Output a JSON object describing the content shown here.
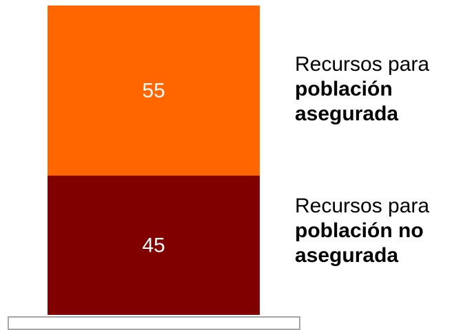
{
  "chart_data": {
    "type": "bar",
    "stacked": true,
    "categories": [
      ""
    ],
    "series": [
      {
        "name_lines": [
          "Recursos para",
          "población no",
          "asegurada"
        ],
        "value": 45,
        "color": "#800000"
      },
      {
        "name_lines": [
          "Recursos para",
          "población",
          "asegurada"
        ],
        "value": 55,
        "color": "#ff6600"
      }
    ],
    "ylim": [
      0,
      100
    ],
    "grid": false
  },
  "legend": {
    "top": {
      "line1": "Recursos para",
      "line2": "población",
      "line3": "asegurada"
    },
    "bottom": {
      "line1": "Recursos para",
      "line2": "población no",
      "line3": "asegurada"
    }
  }
}
